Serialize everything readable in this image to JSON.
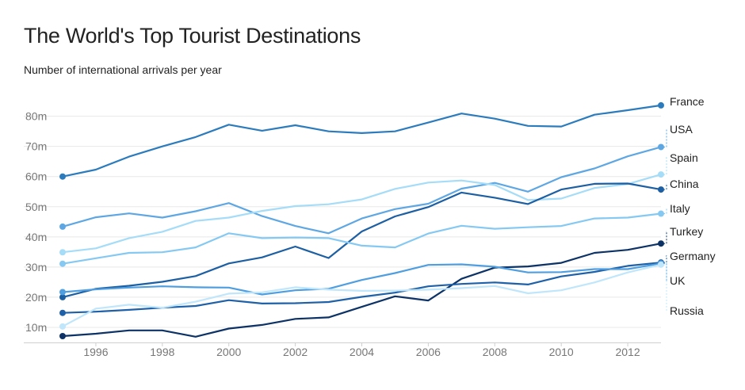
{
  "title": "The World's Top Tourist Destinations",
  "subtitle": "Number of international arrivals per year",
  "chart_data": {
    "type": "line",
    "x": [
      1995,
      1996,
      1997,
      1998,
      1999,
      2000,
      2001,
      2002,
      2003,
      2004,
      2005,
      2006,
      2007,
      2008,
      2009,
      2010,
      2011,
      2012,
      2013
    ],
    "xticks": [
      "1996",
      "1998",
      "2000",
      "2002",
      "2004",
      "2006",
      "2008",
      "2010",
      "2012"
    ],
    "yticks": [
      "10m",
      "20m",
      "30m",
      "40m",
      "50m",
      "60m",
      "70m",
      "80m"
    ],
    "ylim": [
      5,
      87
    ],
    "grid": true,
    "series": [
      {
        "name": "France",
        "color": "#2b7bbd",
        "values": [
          60.0,
          62.3,
          66.6,
          70.0,
          73.1,
          77.2,
          75.2,
          77.0,
          75.0,
          74.4,
          75.0,
          77.9,
          80.9,
          79.2,
          76.8,
          76.6,
          80.5,
          82.0,
          83.6
        ]
      },
      {
        "name": "USA",
        "color": "#5ea7e3",
        "values": [
          43.4,
          46.5,
          47.8,
          46.4,
          48.5,
          51.2,
          46.9,
          43.6,
          41.2,
          46.1,
          49.2,
          51.0,
          56.0,
          57.9,
          55.0,
          59.8,
          62.7,
          66.7,
          69.8
        ]
      },
      {
        "name": "Spain",
        "color": "#a5dcf7",
        "values": [
          34.9,
          36.2,
          39.6,
          41.7,
          45.3,
          46.4,
          48.6,
          50.2,
          50.8,
          52.4,
          55.9,
          58.0,
          58.7,
          57.2,
          52.2,
          52.7,
          56.2,
          57.5,
          60.7
        ]
      },
      {
        "name": "China",
        "color": "#1d5fa3",
        "values": [
          20.0,
          22.8,
          23.8,
          25.1,
          27.0,
          31.2,
          33.2,
          36.8,
          33.0,
          41.8,
          46.8,
          49.9,
          54.7,
          53.0,
          50.9,
          55.7,
          57.6,
          57.7,
          55.7
        ]
      },
      {
        "name": "Italy",
        "color": "#85c9f2",
        "values": [
          31.1,
          32.9,
          34.7,
          34.9,
          36.5,
          41.2,
          39.6,
          39.8,
          39.6,
          37.1,
          36.5,
          41.1,
          43.7,
          42.7,
          43.2,
          43.6,
          46.1,
          46.4,
          47.7
        ]
      },
      {
        "name": "Turkey",
        "color": "#0c3266",
        "values": [
          7.1,
          7.9,
          9.0,
          9.0,
          6.9,
          9.6,
          10.8,
          12.8,
          13.3,
          16.8,
          20.3,
          18.9,
          26.1,
          29.8,
          30.2,
          31.4,
          34.7,
          35.7,
          37.8
        ]
      },
      {
        "name": "Germany",
        "color": "#1f61a8",
        "values": [
          14.8,
          15.2,
          15.8,
          16.5,
          17.1,
          19.0,
          17.9,
          18.0,
          18.4,
          20.1,
          21.5,
          23.6,
          24.4,
          24.9,
          24.2,
          26.9,
          28.4,
          30.4,
          31.5
        ]
      },
      {
        "name": "UK",
        "color": "#4f9ee0",
        "values": [
          21.7,
          22.6,
          23.2,
          23.6,
          23.3,
          23.2,
          20.9,
          22.3,
          22.8,
          25.7,
          28.0,
          30.7,
          30.9,
          30.1,
          28.2,
          28.3,
          29.3,
          29.3,
          31.2
        ]
      },
      {
        "name": "Russia",
        "color": "#bfe6fb",
        "values": [
          10.3,
          16.2,
          17.5,
          16.5,
          18.5,
          21.2,
          21.6,
          23.3,
          22.5,
          22.1,
          22.2,
          22.5,
          23.0,
          23.7,
          21.3,
          22.3,
          24.9,
          28.2,
          30.8
        ]
      }
    ]
  }
}
